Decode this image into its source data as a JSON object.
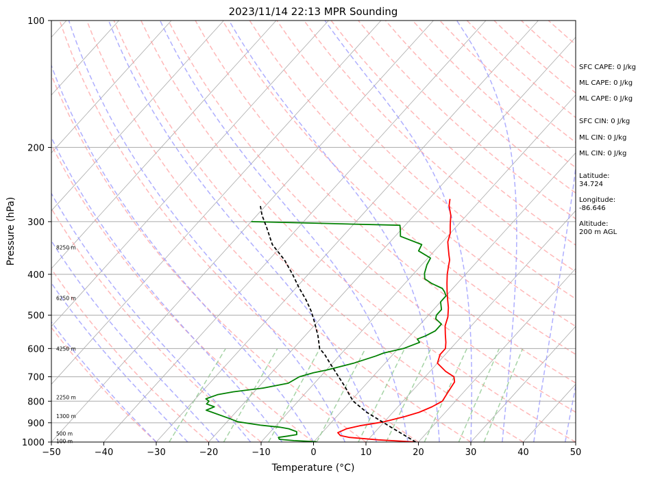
{
  "chart_data": {
    "type": "line",
    "subtype": "skew-t log-p sounding",
    "title": "2023/11/14 22:13 MPR Sounding",
    "xlabel": "Temperature (°C)",
    "ylabel": "Pressure (hPa)",
    "xlim": [
      -50,
      50
    ],
    "ylim": [
      1000,
      100
    ],
    "y_scale": "log",
    "x_ticks": [
      -50,
      -40,
      -30,
      -20,
      -10,
      0,
      10,
      20,
      30,
      40,
      50
    ],
    "y_ticks": [
      100,
      200,
      300,
      400,
      500,
      600,
      700,
      800,
      900,
      1000
    ],
    "x_tick_labels": [
      "−50",
      "−40",
      "−30",
      "−20",
      "−10",
      "0",
      "10",
      "20",
      "30",
      "40",
      "50"
    ],
    "y_tick_labels": [
      "100",
      "200",
      "300",
      "400",
      "500",
      "600",
      "700",
      "800",
      "900",
      "1000"
    ],
    "grid": true,
    "colors": {
      "temperature": "#ff0000",
      "dewpoint": "#008000",
      "parcel": "#000000",
      "dry_adiabats": "#ff9a9a",
      "moist_adiabats": "#9a9aff",
      "mixing_ratio": "#8fc98f",
      "isotherms": "#a9a9a9"
    },
    "altitude_labels": [
      {
        "text": "100 m",
        "p": 995
      },
      {
        "text": "500 m",
        "p": 955
      },
      {
        "text": "1300 m",
        "p": 868
      },
      {
        "text": "2250 m",
        "p": 783
      },
      {
        "text": "4250 m",
        "p": 600
      },
      {
        "text": "6250 m",
        "p": 455
      },
      {
        "text": "8250 m",
        "p": 345
      }
    ],
    "series": [
      {
        "key": "temperature",
        "points": [
          [
            19.5,
            1000
          ],
          [
            17,
            996
          ],
          [
            12,
            988
          ],
          [
            6,
            975
          ],
          [
            4,
            965
          ],
          [
            3,
            950
          ],
          [
            4,
            930
          ],
          [
            6,
            915
          ],
          [
            10,
            895
          ],
          [
            13,
            870
          ],
          [
            15,
            850
          ],
          [
            16.5,
            825
          ],
          [
            17.5,
            800
          ],
          [
            17,
            760
          ],
          [
            16.5,
            720
          ],
          [
            15.5,
            700
          ],
          [
            13,
            680
          ],
          [
            10,
            650
          ],
          [
            9,
            620
          ],
          [
            9,
            600
          ],
          [
            8,
            580
          ],
          [
            6.5,
            555
          ],
          [
            5,
            530
          ],
          [
            4,
            505
          ],
          [
            2.5,
            480
          ],
          [
            1,
            460
          ],
          [
            -0.5,
            440
          ],
          [
            -2,
            420
          ],
          [
            -3.5,
            400
          ],
          [
            -4.5,
            385
          ],
          [
            -5.5,
            370
          ],
          [
            -6.5,
            360
          ],
          [
            -8,
            345
          ],
          [
            -9,
            335
          ],
          [
            -10,
            320
          ],
          [
            -11.5,
            305
          ],
          [
            -13,
            290
          ],
          [
            -15,
            275
          ],
          [
            -16,
            265
          ]
        ]
      },
      {
        "key": "dewpoint",
        "points": [
          [
            0.5,
            998
          ],
          [
            -4,
            992
          ],
          [
            -7,
            985
          ],
          [
            -7.5,
            975
          ],
          [
            -6,
            968
          ],
          [
            -4.5,
            960
          ],
          [
            -5,
            945
          ],
          [
            -7,
            930
          ],
          [
            -9,
            922
          ],
          [
            -13,
            912
          ],
          [
            -18,
            895
          ],
          [
            -20,
            880
          ],
          [
            -26,
            840
          ],
          [
            -25,
            825
          ],
          [
            -27,
            812
          ],
          [
            -27,
            800
          ],
          [
            -28,
            790
          ],
          [
            -26.5,
            772
          ],
          [
            -24,
            760
          ],
          [
            -19,
            745
          ],
          [
            -15,
            725
          ],
          [
            -14,
            700
          ],
          [
            -12,
            685
          ],
          [
            -10,
            675
          ],
          [
            -6,
            650
          ],
          [
            -3,
            625
          ],
          [
            -2,
            615
          ],
          [
            1,
            600
          ],
          [
            3,
            580
          ],
          [
            2,
            570
          ],
          [
            3,
            560
          ],
          [
            4,
            545
          ],
          [
            4,
            525
          ],
          [
            2,
            510
          ],
          [
            1.5,
            500
          ],
          [
            1.5,
            485
          ],
          [
            0,
            465
          ],
          [
            0,
            450
          ],
          [
            -1,
            440
          ],
          [
            -2,
            432
          ],
          [
            -5,
            420
          ],
          [
            -7,
            410
          ],
          [
            -8,
            398
          ],
          [
            -9,
            380
          ],
          [
            -9.5,
            366
          ],
          [
            -13,
            352
          ],
          [
            -13.5,
            340
          ],
          [
            -19,
            325
          ],
          [
            -20,
            315
          ],
          [
            -21,
            306
          ],
          [
            -50,
            300
          ]
        ]
      },
      {
        "key": "parcel",
        "points": [
          [
            19.5,
            1000
          ],
          [
            12,
            920
          ],
          [
            5,
            850
          ],
          [
            0.5,
            800
          ],
          [
            -1.5,
            770
          ],
          [
            -3.5,
            740
          ],
          [
            -6.5,
            700
          ],
          [
            -10.5,
            650
          ],
          [
            -13,
            620
          ],
          [
            -15,
            600
          ],
          [
            -17.5,
            560
          ],
          [
            -20.5,
            520
          ],
          [
            -23,
            490
          ],
          [
            -26,
            460
          ],
          [
            -29.5,
            430
          ],
          [
            -33,
            400
          ],
          [
            -37,
            370
          ],
          [
            -42,
            340
          ],
          [
            -46,
            310
          ],
          [
            -49,
            290
          ],
          [
            -51,
            275
          ]
        ]
      }
    ],
    "side_info": [
      "SFC CAPE: 0 J/kg",
      "ML CAPE: 0 J/kg",
      "ML CAPE: 0 J/kg",
      "SFC CIN: 0 J/kg",
      "ML CIN: 0 J/kg",
      "ML CIN: 0 J/kg",
      "Latitude:\n34.724",
      "Longitude:\n-86.646",
      "Altitude:\n200 m AGL"
    ]
  }
}
